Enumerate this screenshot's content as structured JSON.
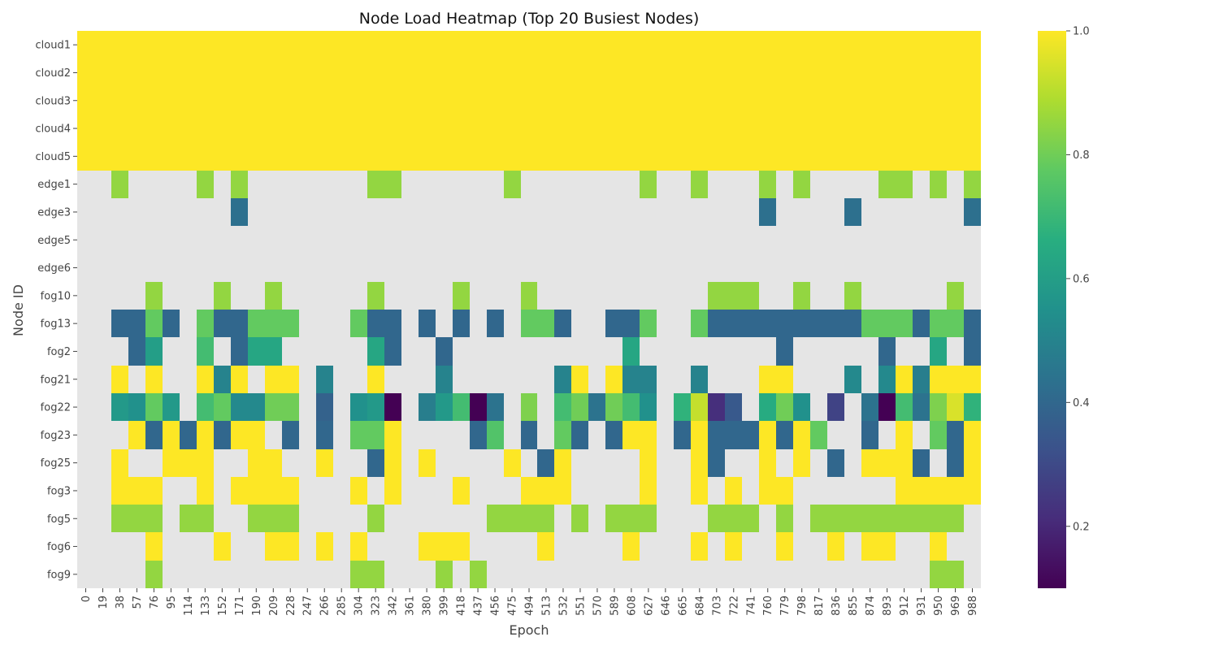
{
  "chart_data": {
    "type": "heatmap",
    "title": "Node Load Heatmap (Top 20 Busiest Nodes)",
    "xlabel": "Epoch",
    "ylabel": "Node ID",
    "rows": [
      "cloud1",
      "cloud2",
      "cloud3",
      "cloud4",
      "cloud5",
      "edge1",
      "edge3",
      "edge5",
      "edge6",
      "fog10",
      "fog13",
      "fog2",
      "fog21",
      "fog22",
      "fog23",
      "fog25",
      "fog3",
      "fog5",
      "fog6",
      "fog9"
    ],
    "x_tick_labels": [
      "0",
      "19",
      "38",
      "57",
      "76",
      "95",
      "114",
      "133",
      "152",
      "171",
      "190",
      "209",
      "228",
      "247",
      "266",
      "285",
      "304",
      "323",
      "342",
      "361",
      "380",
      "399",
      "418",
      "437",
      "456",
      "475",
      "494",
      "513",
      "532",
      "551",
      "570",
      "589",
      "608",
      "627",
      "646",
      "665",
      "684",
      "703",
      "722",
      "741",
      "760",
      "779",
      "798",
      "817",
      "836",
      "855",
      "874",
      "893",
      "912",
      "931",
      "950",
      "969",
      "988"
    ],
    "colorbar": {
      "min": 0.1,
      "max": 1.0,
      "ticks": [
        "0.2",
        "0.4",
        "0.6",
        "0.8",
        "1.0"
      ],
      "colormap": "viridis",
      "missing_color": "#e5e5e5"
    },
    "note_missing": "null = no data",
    "values": [
      "all_1.0",
      "all_1.0",
      "all_1.0",
      "all_1.0",
      "all_1.0",
      [
        null,
        null,
        0.85,
        null,
        null,
        null,
        null,
        0.85,
        null,
        0.85,
        null,
        null,
        null,
        null,
        null,
        null,
        null,
        0.85,
        0.85,
        null,
        null,
        null,
        null,
        null,
        null,
        0.85,
        null,
        null,
        null,
        null,
        null,
        null,
        null,
        0.85,
        null,
        null,
        0.85,
        null,
        null,
        null,
        0.85,
        null,
        0.85,
        null,
        null,
        null,
        null,
        0.85,
        0.85,
        null,
        0.85,
        null,
        0.85
      ],
      [
        null,
        null,
        null,
        null,
        null,
        null,
        null,
        null,
        null,
        0.43,
        null,
        null,
        null,
        null,
        null,
        null,
        null,
        null,
        null,
        null,
        null,
        null,
        null,
        null,
        null,
        null,
        null,
        null,
        null,
        null,
        null,
        null,
        null,
        null,
        null,
        null,
        null,
        null,
        null,
        null,
        0.43,
        null,
        null,
        null,
        null,
        0.43,
        null,
        null,
        null,
        null,
        null,
        null,
        0.43
      ],
      [
        null,
        null,
        null,
        null,
        null,
        null,
        null,
        null,
        null,
        null,
        null,
        null,
        null,
        null,
        null,
        null,
        null,
        null,
        null,
        null,
        null,
        null,
        null,
        null,
        null,
        null,
        null,
        null,
        null,
        null,
        null,
        null,
        null,
        null,
        null,
        null,
        null,
        null,
        null,
        null,
        null,
        null,
        null,
        null,
        null,
        null,
        null,
        null,
        null,
        null,
        null,
        null,
        null
      ],
      [
        null,
        null,
        null,
        null,
        null,
        null,
        null,
        null,
        null,
        null,
        null,
        null,
        null,
        null,
        null,
        null,
        null,
        null,
        null,
        null,
        null,
        null,
        null,
        null,
        null,
        null,
        null,
        null,
        null,
        null,
        null,
        null,
        null,
        null,
        null,
        null,
        null,
        null,
        null,
        null,
        null,
        null,
        null,
        null,
        null,
        null,
        null,
        null,
        null,
        null,
        null,
        null,
        null
      ],
      [
        null,
        null,
        null,
        null,
        0.85,
        null,
        null,
        null,
        0.85,
        null,
        null,
        0.85,
        null,
        null,
        null,
        null,
        null,
        0.85,
        null,
        null,
        null,
        null,
        0.85,
        null,
        null,
        null,
        0.85,
        null,
        null,
        null,
        null,
        null,
        null,
        null,
        null,
        null,
        null,
        0.85,
        0.85,
        0.85,
        null,
        null,
        0.85,
        null,
        null,
        0.85,
        null,
        null,
        null,
        null,
        null,
        0.85,
        null
      ],
      [
        null,
        null,
        0.4,
        0.4,
        0.78,
        0.4,
        null,
        0.78,
        0.4,
        0.4,
        0.78,
        0.78,
        0.78,
        null,
        null,
        null,
        0.78,
        0.4,
        0.4,
        null,
        0.4,
        null,
        0.4,
        null,
        0.4,
        null,
        0.78,
        0.78,
        0.4,
        null,
        null,
        0.4,
        0.4,
        0.78,
        null,
        null,
        0.78,
        0.4,
        0.4,
        0.4,
        0.4,
        0.4,
        0.4,
        0.4,
        0.4,
        0.4,
        0.78,
        0.78,
        0.78,
        0.4,
        0.78,
        0.78,
        0.4
      ],
      [
        null,
        null,
        null,
        0.4,
        0.6,
        null,
        null,
        0.72,
        null,
        0.4,
        0.63,
        0.63,
        null,
        null,
        null,
        null,
        null,
        0.63,
        0.4,
        null,
        null,
        0.4,
        null,
        null,
        null,
        null,
        null,
        null,
        null,
        null,
        null,
        null,
        0.63,
        null,
        null,
        null,
        null,
        null,
        null,
        null,
        null,
        0.4,
        null,
        null,
        null,
        null,
        null,
        0.4,
        null,
        null,
        0.63,
        null,
        0.4
      ],
      [
        null,
        null,
        1.0,
        null,
        1.0,
        null,
        null,
        1.0,
        0.5,
        1.0,
        null,
        1.0,
        1.0,
        null,
        0.5,
        null,
        null,
        1.0,
        null,
        null,
        null,
        0.5,
        null,
        null,
        null,
        null,
        null,
        null,
        0.5,
        1.0,
        null,
        1.0,
        0.5,
        0.5,
        null,
        null,
        0.5,
        null,
        null,
        null,
        1.0,
        1.0,
        null,
        null,
        null,
        0.52,
        null,
        0.52,
        1.0,
        0.48,
        1.0,
        1.0,
        1.0
      ],
      [
        null,
        null,
        0.58,
        0.55,
        0.78,
        0.58,
        null,
        0.72,
        0.78,
        0.52,
        0.52,
        0.8,
        0.8,
        null,
        0.38,
        null,
        0.55,
        0.58,
        0.1,
        null,
        0.48,
        0.58,
        0.72,
        0.1,
        0.44,
        null,
        0.82,
        null,
        0.72,
        0.8,
        0.44,
        0.8,
        0.72,
        0.55,
        null,
        0.68,
        0.92,
        0.22,
        0.35,
        null,
        0.65,
        0.8,
        0.55,
        null,
        0.28,
        null,
        0.44,
        0.1,
        0.72,
        0.44,
        0.82,
        0.95,
        0.68
      ],
      [
        null,
        null,
        null,
        1.0,
        0.4,
        1.0,
        0.4,
        1.0,
        0.4,
        1.0,
        1.0,
        null,
        0.4,
        null,
        0.4,
        null,
        0.78,
        0.78,
        1.0,
        null,
        null,
        null,
        null,
        0.4,
        0.75,
        null,
        0.4,
        null,
        0.78,
        0.4,
        null,
        0.4,
        1.0,
        1.0,
        null,
        0.4,
        1.0,
        0.4,
        0.4,
        0.4,
        1.0,
        0.4,
        1.0,
        0.78,
        null,
        null,
        0.4,
        null,
        1.0,
        null,
        0.78,
        0.4,
        1.0
      ],
      [
        null,
        null,
        1.0,
        null,
        null,
        1.0,
        1.0,
        1.0,
        null,
        null,
        1.0,
        1.0,
        null,
        null,
        1.0,
        null,
        null,
        0.4,
        1.0,
        null,
        1.0,
        null,
        null,
        null,
        null,
        1.0,
        null,
        0.4,
        1.0,
        null,
        null,
        null,
        null,
        1.0,
        null,
        null,
        1.0,
        0.4,
        null,
        null,
        1.0,
        null,
        1.0,
        null,
        0.4,
        null,
        1.0,
        1.0,
        1.0,
        0.4,
        null,
        0.4,
        1.0
      ],
      [
        null,
        null,
        1.0,
        1.0,
        1.0,
        null,
        null,
        1.0,
        null,
        1.0,
        1.0,
        1.0,
        1.0,
        null,
        null,
        null,
        1.0,
        null,
        1.0,
        null,
        null,
        null,
        1.0,
        null,
        null,
        null,
        1.0,
        1.0,
        1.0,
        null,
        null,
        null,
        null,
        1.0,
        null,
        null,
        1.0,
        null,
        1.0,
        null,
        1.0,
        1.0,
        null,
        null,
        null,
        null,
        null,
        null,
        1.0,
        1.0,
        1.0,
        1.0,
        1.0
      ],
      [
        null,
        null,
        0.85,
        0.85,
        0.85,
        null,
        0.85,
        0.85,
        null,
        null,
        0.85,
        0.85,
        0.85,
        null,
        null,
        null,
        null,
        0.85,
        null,
        null,
        null,
        null,
        null,
        null,
        0.85,
        0.85,
        0.85,
        0.85,
        null,
        0.85,
        null,
        0.85,
        0.85,
        0.85,
        null,
        null,
        null,
        0.85,
        0.85,
        0.85,
        null,
        0.85,
        null,
        0.85,
        0.85,
        0.85,
        0.85,
        0.85,
        0.85,
        0.85,
        0.85,
        0.85,
        null
      ],
      [
        null,
        null,
        null,
        null,
        1.0,
        null,
        null,
        null,
        1.0,
        null,
        null,
        1.0,
        1.0,
        null,
        1.0,
        null,
        1.0,
        null,
        null,
        null,
        1.0,
        1.0,
        1.0,
        null,
        null,
        null,
        null,
        1.0,
        null,
        null,
        null,
        null,
        1.0,
        null,
        null,
        null,
        1.0,
        null,
        1.0,
        null,
        null,
        1.0,
        null,
        null,
        1.0,
        null,
        1.0,
        1.0,
        null,
        null,
        1.0,
        null,
        null
      ],
      [
        null,
        null,
        null,
        null,
        0.85,
        null,
        null,
        null,
        null,
        null,
        null,
        null,
        null,
        null,
        null,
        null,
        0.85,
        0.85,
        null,
        null,
        null,
        0.85,
        null,
        0.85,
        null,
        null,
        null,
        null,
        null,
        null,
        null,
        null,
        null,
        null,
        null,
        null,
        null,
        null,
        null,
        null,
        null,
        null,
        null,
        null,
        null,
        null,
        null,
        null,
        null,
        null,
        0.85,
        0.85,
        null
      ]
    ]
  }
}
